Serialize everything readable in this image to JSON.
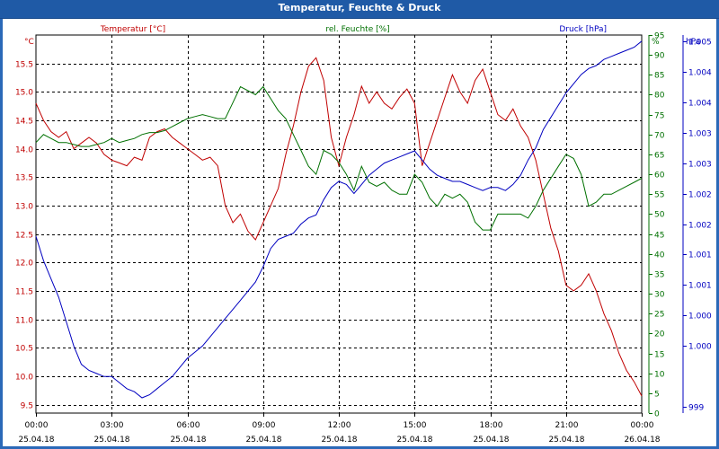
{
  "window": {
    "title": "Temperatur, Feuchte & Druck"
  },
  "colors": {
    "temperature": "#c00000",
    "humidity": "#007000",
    "pressure": "#0000c0",
    "grid": "#000000"
  },
  "chart_data": {
    "type": "line",
    "title": "Temperatur, Feuchte & Druck",
    "grid": true,
    "x_ticks": [
      {
        "h": 0,
        "time": "00:00",
        "date": "25.04.18"
      },
      {
        "h": 3,
        "time": "03:00",
        "date": "25.04.18"
      },
      {
        "h": 6,
        "time": "06:00",
        "date": "25.04.18"
      },
      {
        "h": 9,
        "time": "09:00",
        "date": "25.04.18"
      },
      {
        "h": 12,
        "time": "12:00",
        "date": "25.04.18"
      },
      {
        "h": 15,
        "time": "15:00",
        "date": "25.04.18"
      },
      {
        "h": 18,
        "time": "18:00",
        "date": "25.04.18"
      },
      {
        "h": 21,
        "time": "21:00",
        "date": "25.04.18"
      },
      {
        "h": 24,
        "time": "00:00",
        "date": "26.04.18"
      }
    ],
    "x_range": [
      0,
      24
    ],
    "axes": {
      "temperature": {
        "label": "Temperatur [°C]",
        "unit": "°C",
        "range": [
          9.35,
          16.0
        ],
        "ticks": [
          9.5,
          10.0,
          10.5,
          11.0,
          11.5,
          12.0,
          12.5,
          13.0,
          13.5,
          14.0,
          14.5,
          15.0,
          15.5
        ],
        "tick_labels": [
          "9.5",
          "10.0",
          "10.5",
          "11.0",
          "11.5",
          "12.0",
          "12.5",
          "13.0",
          "13.5",
          "14.0",
          "14.5",
          "15.0",
          "15.5"
        ]
      },
      "humidity": {
        "label": "rel. Feuchte [%]",
        "unit": "%",
        "range": [
          0,
          95
        ],
        "ticks": [
          0,
          5,
          10,
          15,
          20,
          25,
          30,
          35,
          40,
          45,
          50,
          55,
          60,
          65,
          70,
          75,
          80,
          85,
          90,
          95
        ],
        "tick_labels": [
          "0",
          "5",
          "10",
          "15",
          "20",
          "25",
          "30",
          "35",
          "40",
          "45",
          "50",
          "55",
          "60",
          "65",
          "70",
          "75",
          "80",
          "85",
          "90",
          "95"
        ]
      },
      "pressure": {
        "label": "Druck [hPa]",
        "unit": "hPa",
        "range": [
          998.8,
          1005.0
        ],
        "ticks": [
          998.9,
          999.9,
          1000.4,
          1000.9,
          1001.4,
          1001.9,
          1002.4,
          1002.9,
          1003.4,
          1003.9,
          1004.4,
          1004.9
        ],
        "tick_labels": [
          "999",
          "1.000",
          "1.000",
          "1.001",
          "1.001",
          "1.002",
          "1.002",
          "1.003",
          "1.003",
          "1.004",
          "1.004",
          "1.005"
        ]
      }
    },
    "series": [
      {
        "name": "Temperatur",
        "axis": "temperature",
        "x": [
          0,
          0.3,
          0.6,
          0.9,
          1.2,
          1.5,
          1.8,
          2.1,
          2.4,
          2.7,
          3.0,
          3.3,
          3.6,
          3.9,
          4.2,
          4.5,
          4.8,
          5.1,
          5.4,
          5.7,
          6.0,
          6.3,
          6.6,
          6.9,
          7.2,
          7.5,
          7.8,
          8.1,
          8.4,
          8.7,
          9.0,
          9.3,
          9.6,
          9.9,
          10.2,
          10.5,
          10.8,
          11.1,
          11.4,
          11.7,
          12.0,
          12.3,
          12.6,
          12.9,
          13.2,
          13.5,
          13.8,
          14.1,
          14.4,
          14.7,
          15.0,
          15.3,
          15.6,
          15.9,
          16.2,
          16.5,
          16.8,
          17.1,
          17.4,
          17.7,
          18.0,
          18.3,
          18.6,
          18.9,
          19.2,
          19.5,
          19.8,
          20.1,
          20.4,
          20.7,
          21.0,
          21.3,
          21.6,
          21.9,
          22.2,
          22.5,
          22.8,
          23.1,
          23.4,
          23.7,
          24.0
        ],
        "values": [
          14.8,
          14.5,
          14.3,
          14.2,
          14.3,
          14.0,
          14.1,
          14.2,
          14.1,
          13.9,
          13.8,
          13.75,
          13.7,
          13.85,
          13.8,
          14.2,
          14.3,
          14.35,
          14.2,
          14.1,
          14.0,
          13.9,
          13.8,
          13.85,
          13.7,
          13.0,
          12.7,
          12.85,
          12.55,
          12.4,
          12.7,
          13.0,
          13.3,
          13.9,
          14.4,
          15.0,
          15.45,
          15.6,
          15.2,
          14.2,
          13.7,
          14.2,
          14.6,
          15.1,
          14.8,
          15.0,
          14.8,
          14.7,
          14.9,
          15.05,
          14.8,
          13.7,
          14.1,
          14.5,
          14.9,
          15.3,
          15.0,
          14.8,
          15.2,
          15.4,
          15.0,
          14.6,
          14.5,
          14.7,
          14.4,
          14.2,
          13.8,
          13.2,
          12.6,
          12.2,
          11.6,
          11.5,
          11.6,
          11.8,
          11.5,
          11.1,
          10.8,
          10.4,
          10.1,
          9.9,
          9.65
        ]
      },
      {
        "name": "rel. Feuchte",
        "axis": "humidity",
        "x": [
          0,
          0.3,
          0.6,
          0.9,
          1.2,
          1.5,
          1.8,
          2.1,
          2.4,
          2.7,
          3.0,
          3.3,
          3.6,
          3.9,
          4.2,
          4.5,
          4.8,
          5.1,
          5.4,
          5.7,
          6.0,
          6.3,
          6.6,
          6.9,
          7.2,
          7.5,
          7.8,
          8.1,
          8.4,
          8.7,
          9.0,
          9.3,
          9.6,
          9.9,
          10.2,
          10.5,
          10.8,
          11.1,
          11.4,
          11.7,
          12.0,
          12.3,
          12.6,
          12.9,
          13.2,
          13.5,
          13.8,
          14.1,
          14.4,
          14.7,
          15.0,
          15.3,
          15.6,
          15.9,
          16.2,
          16.5,
          16.8,
          17.1,
          17.4,
          17.7,
          18.0,
          18.3,
          18.6,
          18.9,
          19.2,
          19.5,
          19.8,
          20.1,
          20.4,
          20.7,
          21.0,
          21.3,
          21.6,
          21.9,
          22.2,
          22.5,
          22.8,
          23.1,
          23.4,
          23.7,
          24.0
        ],
        "values": [
          68,
          70,
          69,
          68,
          68,
          67.5,
          67,
          67,
          67.5,
          68,
          69,
          68,
          68.5,
          69,
          70,
          70.5,
          70.5,
          71,
          72,
          73,
          74,
          74.5,
          75,
          74.5,
          74,
          74,
          78,
          82,
          81,
          80,
          82,
          79,
          76,
          74,
          70,
          66,
          62,
          60,
          66,
          65,
          63,
          60,
          56,
          62,
          58,
          57,
          58,
          56,
          55,
          55,
          60,
          58,
          54,
          52,
          55,
          54,
          55,
          53,
          48,
          46,
          46,
          50,
          50,
          50,
          50,
          49,
          52,
          56,
          59,
          62,
          65,
          64,
          60,
          52,
          53,
          55,
          55,
          56,
          57,
          58,
          59
        ]
      },
      {
        "name": "Druck",
        "axis": "pressure",
        "x": [
          0,
          0.3,
          0.6,
          0.9,
          1.2,
          1.5,
          1.8,
          2.1,
          2.4,
          2.7,
          3.0,
          3.3,
          3.6,
          3.9,
          4.2,
          4.5,
          4.8,
          5.1,
          5.4,
          5.7,
          6.0,
          6.3,
          6.6,
          6.9,
          7.2,
          7.5,
          7.8,
          8.1,
          8.4,
          8.7,
          9.0,
          9.3,
          9.6,
          9.9,
          10.2,
          10.5,
          10.8,
          11.1,
          11.4,
          11.7,
          12.0,
          12.3,
          12.6,
          12.9,
          13.2,
          13.5,
          13.8,
          14.1,
          14.4,
          14.7,
          15.0,
          15.3,
          15.6,
          15.9,
          16.2,
          16.5,
          16.8,
          17.1,
          17.4,
          17.7,
          18.0,
          18.3,
          18.6,
          18.9,
          19.2,
          19.5,
          19.8,
          20.1,
          20.4,
          20.7,
          21.0,
          21.3,
          21.6,
          21.9,
          22.2,
          22.5,
          22.8,
          23.1,
          23.4,
          23.7,
          24.0
        ],
        "values": [
          1001.7,
          1001.3,
          1001.0,
          1000.7,
          1000.3,
          999.9,
          999.6,
          999.5,
          999.45,
          999.4,
          999.4,
          999.3,
          999.2,
          999.15,
          999.05,
          999.1,
          999.2,
          999.3,
          999.4,
          999.55,
          999.7,
          999.8,
          999.9,
          1000.05,
          1000.2,
          1000.35,
          1000.5,
          1000.65,
          1000.8,
          1000.95,
          1001.2,
          1001.5,
          1001.65,
          1001.7,
          1001.75,
          1001.9,
          1002.0,
          1002.05,
          1002.3,
          1002.5,
          1002.6,
          1002.55,
          1002.4,
          1002.55,
          1002.7,
          1002.8,
          1002.9,
          1002.95,
          1003.0,
          1003.05,
          1003.1,
          1002.95,
          1002.8,
          1002.7,
          1002.65,
          1002.6,
          1002.6,
          1002.55,
          1002.5,
          1002.45,
          1002.5,
          1002.5,
          1002.45,
          1002.55,
          1002.7,
          1002.95,
          1003.15,
          1003.45,
          1003.65,
          1003.85,
          1004.05,
          1004.2,
          1004.35,
          1004.45,
          1004.5,
          1004.6,
          1004.65,
          1004.7,
          1004.75,
          1004.8,
          1004.9
        ]
      }
    ]
  }
}
